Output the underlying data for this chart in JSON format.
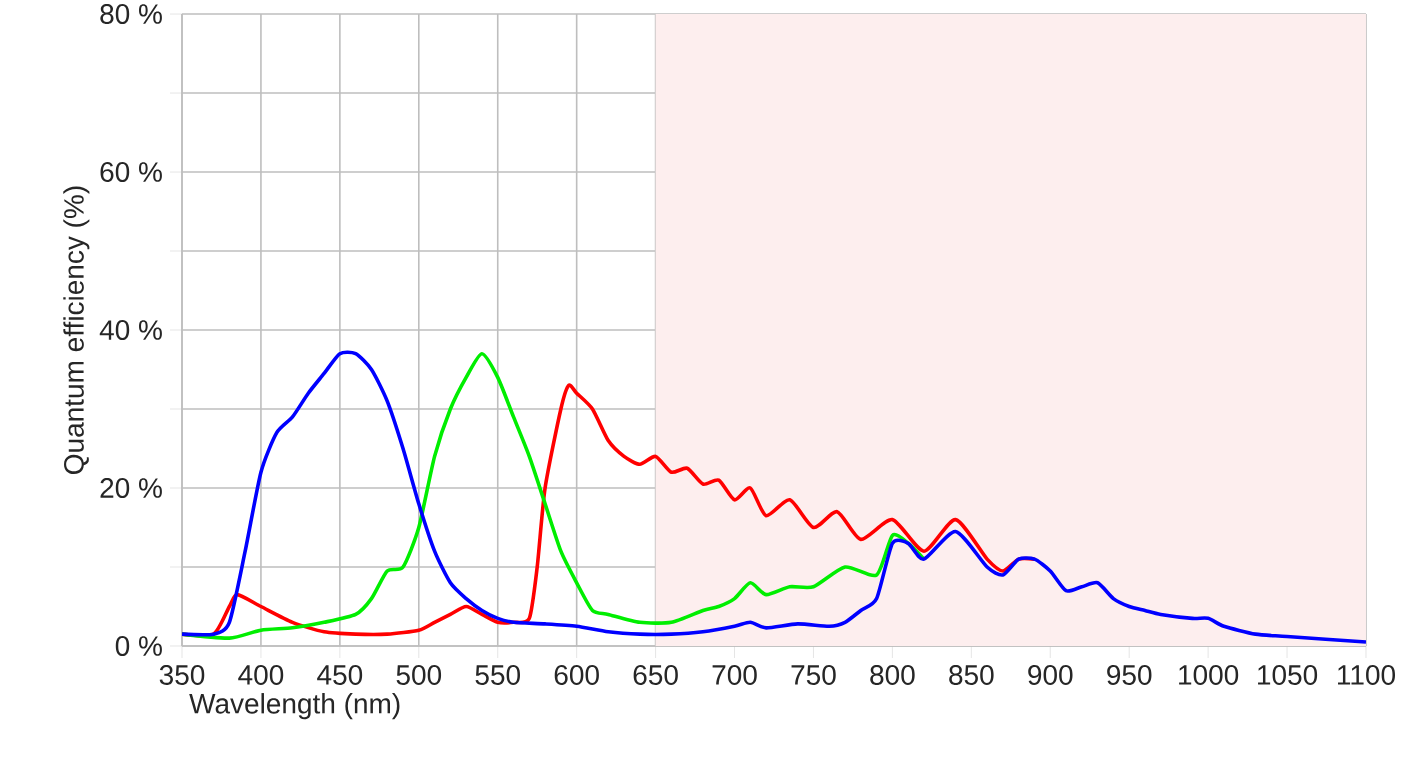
{
  "chart_data": {
    "type": "line",
    "xlabel": "Wavelength (nm)",
    "ylabel": "Quantum efficiency (%)",
    "xlim": [
      350,
      1100
    ],
    "ylim": [
      0,
      80
    ],
    "xticks": [
      350,
      400,
      450,
      500,
      550,
      600,
      650,
      700,
      750,
      800,
      850,
      900,
      950,
      1000,
      1050,
      1100
    ],
    "yticks": [
      {
        "value": 0,
        "label": "0 %"
      },
      {
        "value": 10,
        "label": null
      },
      {
        "value": 20,
        "label": "20 %"
      },
      {
        "value": 30,
        "label": null
      },
      {
        "value": 40,
        "label": "40 %"
      },
      {
        "value": 50,
        "label": null
      },
      {
        "value": 60,
        "label": "60 %"
      },
      {
        "value": 70,
        "label": null
      },
      {
        "value": 80,
        "label": "80 %"
      }
    ],
    "grid": true,
    "marker": "none",
    "line_style": "solid",
    "bands": [
      {
        "axis": "x",
        "from": 650,
        "to": 1100,
        "color": "#fdeeee"
      }
    ],
    "series": [
      {
        "color": "#ff0000",
        "x": [
          350,
          370,
          380,
          385,
          400,
          420,
          440,
          460,
          480,
          500,
          510,
          520,
          530,
          540,
          550,
          560,
          570,
          575,
          580,
          590,
          595,
          600,
          610,
          620,
          630,
          640,
          650,
          660,
          670,
          680,
          690,
          700,
          710,
          720,
          735,
          750,
          765,
          780,
          800,
          820,
          840,
          860,
          870,
          880,
          890
        ],
        "values": [
          1.5,
          1.5,
          5,
          6.5,
          5,
          3,
          1.8,
          1.5,
          1.5,
          2,
          3,
          4,
          5,
          4,
          3,
          3,
          3.5,
          10,
          20,
          30,
          33,
          32,
          30,
          26,
          24,
          23,
          24,
          22,
          22.5,
          20.5,
          21,
          18.5,
          20,
          16.5,
          18.5,
          15,
          17,
          13.5,
          16,
          12,
          16,
          11,
          9.5,
          11,
          11
        ]
      },
      {
        "color": "#00ee00",
        "x": [
          350,
          380,
          400,
          420,
          440,
          460,
          470,
          480,
          490,
          500,
          510,
          520,
          530,
          540,
          550,
          560,
          570,
          580,
          590,
          600,
          610,
          620,
          640,
          660,
          680,
          690,
          700,
          710,
          720,
          735,
          750,
          770,
          790,
          800,
          810,
          820
        ],
        "values": [
          1.5,
          1,
          2,
          2.3,
          3,
          4,
          6,
          9.5,
          10,
          15,
          24,
          30,
          34,
          37,
          34,
          29,
          24,
          18,
          12,
          8,
          4.5,
          4,
          3,
          3,
          4.5,
          5,
          6,
          8,
          6.5,
          7.5,
          7.5,
          10,
          9,
          14,
          13,
          11
        ]
      },
      {
        "color": "#0000ff",
        "x": [
          350,
          370,
          380,
          390,
          400,
          410,
          420,
          430,
          440,
          450,
          460,
          470,
          480,
          490,
          500,
          510,
          520,
          530,
          540,
          550,
          560,
          580,
          600,
          620,
          640,
          660,
          680,
          700,
          710,
          720,
          740,
          760,
          770,
          780,
          790,
          800,
          810,
          820,
          840,
          860,
          870,
          880,
          890,
          900,
          910,
          920,
          930,
          940,
          950,
          960,
          970,
          990,
          1000,
          1010,
          1030,
          1050,
          1100
        ],
        "values": [
          1.5,
          1.5,
          3,
          12,
          22,
          27,
          29,
          32,
          34.5,
          37,
          37,
          35,
          31,
          25,
          18,
          12,
          8,
          6,
          4.5,
          3.5,
          3,
          2.8,
          2.5,
          1.8,
          1.5,
          1.5,
          1.8,
          2.5,
          3,
          2.3,
          2.8,
          2.5,
          3,
          4.5,
          6,
          13,
          13,
          11,
          14.5,
          10,
          9,
          11,
          11,
          9.5,
          7,
          7.5,
          8,
          6,
          5,
          4.5,
          4,
          3.5,
          3.5,
          2.5,
          1.5,
          1.2,
          0.5
        ]
      }
    ]
  }
}
